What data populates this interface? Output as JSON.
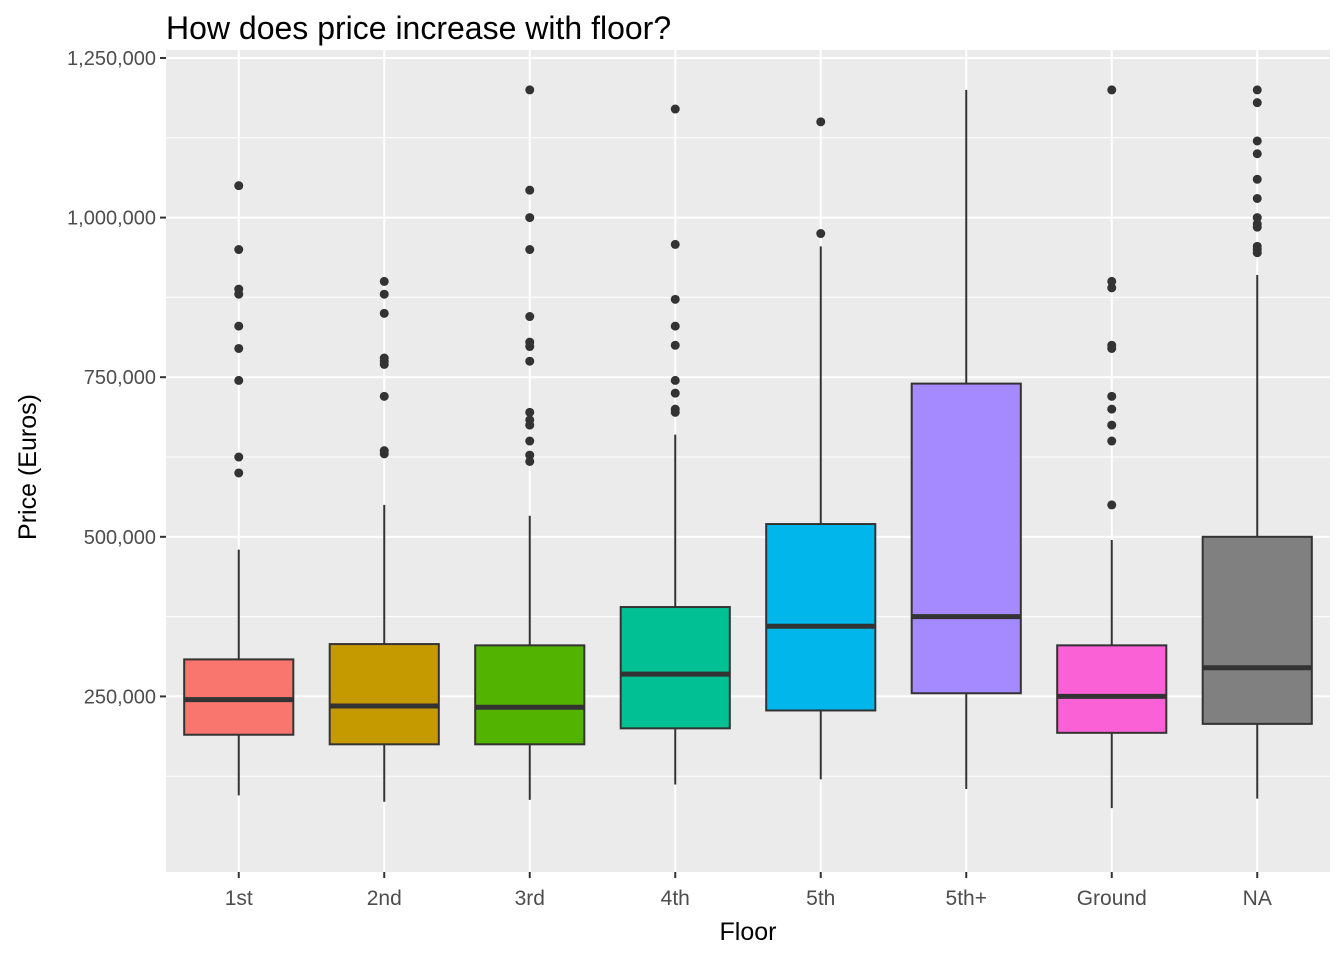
{
  "chart_data": {
    "type": "boxplot",
    "title": "How does price increase with floor?",
    "xlabel": "Floor",
    "ylabel": "Price (Euros)",
    "ylim": [
      -25000,
      1262500
    ],
    "y_ticks": [
      250000,
      500000,
      750000,
      1000000,
      1250000
    ],
    "y_tick_labels": [
      "250,000",
      "500,000",
      "750,000",
      "1,000,000",
      "1,250,000"
    ],
    "grid": true,
    "legend": "none",
    "categories": [
      "1st",
      "2nd",
      "3rd",
      "4th",
      "5th",
      "5th+",
      "Ground",
      "NA"
    ],
    "series": [
      {
        "category": "1st",
        "color": "#F8766D",
        "min": 95000,
        "q1": 190000,
        "median": 245000,
        "q3": 308000,
        "max": 480000,
        "outliers": [
          600000,
          625000,
          745000,
          795000,
          830000,
          880000,
          888000,
          950000,
          1050000
        ]
      },
      {
        "category": "2nd",
        "color": "#C49A00",
        "min": 85000,
        "q1": 175000,
        "median": 235000,
        "q3": 332000,
        "max": 550000,
        "outliers": [
          630000,
          635000,
          720000,
          770000,
          775000,
          780000,
          850000,
          880000,
          900000
        ]
      },
      {
        "category": "3rd",
        "color": "#53B400",
        "min": 88000,
        "q1": 175000,
        "median": 233000,
        "q3": 330000,
        "max": 533000,
        "outliers": [
          618000,
          628000,
          650000,
          675000,
          683000,
          695000,
          775000,
          798000,
          805000,
          845000,
          950000,
          1000000,
          1043000,
          1200000
        ]
      },
      {
        "category": "4th",
        "color": "#00C094",
        "min": 112000,
        "q1": 200000,
        "median": 285000,
        "q3": 390000,
        "max": 660000,
        "outliers": [
          695000,
          700000,
          725000,
          745000,
          800000,
          830000,
          872000,
          958000,
          1170000
        ]
      },
      {
        "category": "5th",
        "color": "#00B6EB",
        "min": 120000,
        "q1": 228000,
        "median": 360000,
        "q3": 520000,
        "max": 955000,
        "outliers": [
          975000,
          1150000
        ]
      },
      {
        "category": "5th+",
        "color": "#A58AFF",
        "min": 105000,
        "q1": 255000,
        "median": 375000,
        "q3": 740000,
        "max": 1200000,
        "outliers": []
      },
      {
        "category": "Ground",
        "color": "#FB61D7",
        "min": 75000,
        "q1": 193000,
        "median": 250000,
        "q3": 330000,
        "max": 495000,
        "outliers": [
          550000,
          650000,
          675000,
          700000,
          720000,
          795000,
          800000,
          890000,
          900000,
          1200000
        ]
      },
      {
        "category": "NA",
        "color": "#808080",
        "min": 90000,
        "q1": 207000,
        "median": 295000,
        "q3": 500000,
        "max": 910000,
        "outliers": [
          945000,
          950000,
          955000,
          985000,
          990000,
          1000000,
          1030000,
          1060000,
          1100000,
          1120000,
          1180000,
          1200000
        ]
      }
    ]
  }
}
